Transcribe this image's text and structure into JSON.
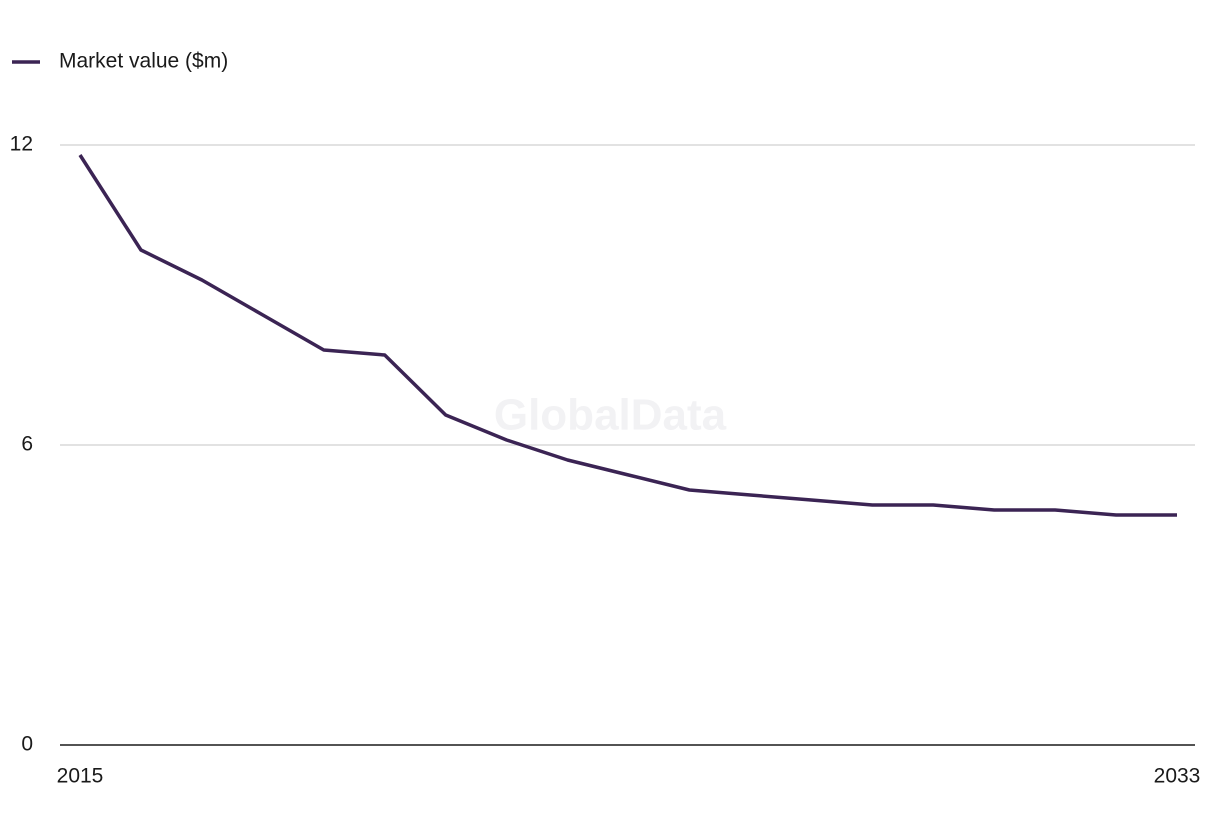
{
  "chart_data": {
    "type": "line",
    "watermark": "GlobalData",
    "x": [
      2015,
      2016,
      2017,
      2018,
      2019,
      2020,
      2021,
      2022,
      2023,
      2024,
      2025,
      2026,
      2027,
      2028,
      2029,
      2030,
      2031,
      2032,
      2033
    ],
    "series": [
      {
        "name": "Market value ($m)",
        "color": "#3b2454",
        "values": [
          11.8,
          9.9,
          9.3,
          8.6,
          7.9,
          7.8,
          6.6,
          6.1,
          5.7,
          5.4,
          5.1,
          5.0,
          4.9,
          4.8,
          4.8,
          4.7,
          4.7,
          4.6,
          4.6
        ]
      }
    ],
    "xlim": [
      2015,
      2033
    ],
    "xticks": [
      2015,
      2033
    ],
    "ylim": [
      0,
      12
    ],
    "yticks": [
      0,
      6,
      12
    ],
    "grid": true,
    "legend": "top-left"
  }
}
